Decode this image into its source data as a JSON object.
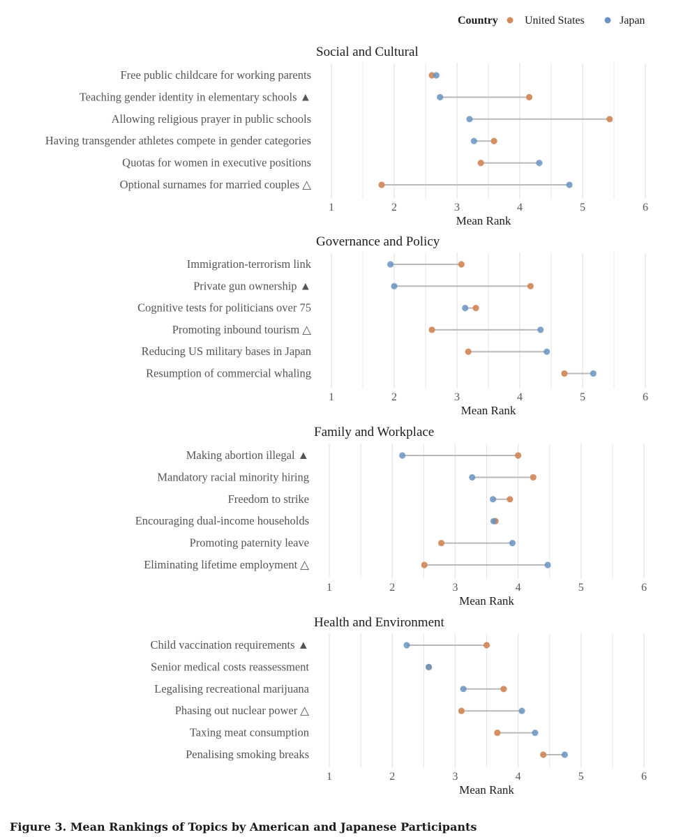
{
  "legend": {
    "title": "Country",
    "items": [
      "United States",
      "Japan"
    ]
  },
  "colors": {
    "us": "#d08a5c",
    "japan": "#6a94c0",
    "connector": "#b9b9b9",
    "grid": "#e6e6e6",
    "text": "#555555",
    "title_text": "#1c1c1c"
  },
  "caption": "Figure 3.  Mean Rankings of Topics by American and Japanese Participants",
  "chart_data": [
    {
      "type": "scatter",
      "title": "Social and Cultural",
      "xlabel": "Mean Rank",
      "xlim": [
        1,
        6
      ],
      "xticks": [
        "1",
        "2",
        "3",
        "4",
        "5",
        "6"
      ],
      "categories": [
        "Free public childcare for working parents",
        "Teaching gender identity in elementary schools ▲",
        "Allowing religious prayer in public schools",
        "Having transgender athletes compete in gender categories",
        "Quotas for women in executive positions",
        "Optional surnames for married couples △"
      ],
      "series": [
        {
          "name": "United States",
          "values": [
            2.6,
            4.15,
            5.43,
            3.59,
            3.38,
            1.8
          ]
        },
        {
          "name": "Japan",
          "values": [
            2.67,
            2.73,
            3.2,
            3.27,
            4.31,
            4.79
          ]
        }
      ]
    },
    {
      "type": "scatter",
      "title": "Governance and Policy",
      "xlabel": "Mean Rank",
      "xlim": [
        1,
        6
      ],
      "xticks": [
        "1",
        "2",
        "3",
        "4",
        "5",
        "6"
      ],
      "categories": [
        "Immigration-terrorism link",
        "Private gun ownership ▲",
        "Cognitive tests for politicians over 75",
        "Promoting inbound tourism △",
        "Reducing US military bases in Japan",
        "Resumption of commercial whaling"
      ],
      "series": [
        {
          "name": "United States",
          "values": [
            3.07,
            4.17,
            3.3,
            2.6,
            3.18,
            4.71
          ]
        },
        {
          "name": "Japan",
          "values": [
            1.94,
            2.0,
            3.13,
            4.33,
            4.43,
            5.17
          ]
        }
      ]
    },
    {
      "type": "scatter",
      "title": "Family and Workplace",
      "xlabel": "Mean Rank",
      "xlim": [
        1,
        6
      ],
      "xticks": [
        "1",
        "2",
        "3",
        "4",
        "5",
        "6"
      ],
      "categories": [
        "Making abortion illegal ▲",
        "Mandatory racial minority hiring",
        "Freedom to strike",
        "Encouraging dual-income households",
        "Promoting paternity leave",
        "Eliminating lifetime employment △"
      ],
      "series": [
        {
          "name": "United States",
          "values": [
            4.0,
            4.24,
            3.87,
            3.64,
            2.78,
            2.51
          ]
        },
        {
          "name": "Japan",
          "values": [
            2.16,
            3.27,
            3.6,
            3.61,
            3.91,
            4.47
          ]
        }
      ]
    },
    {
      "type": "scatter",
      "title": "Health and Environment",
      "xlabel": "Mean Rank",
      "xlim": [
        1,
        6
      ],
      "xticks": [
        "1",
        "2",
        "3",
        "4",
        "5",
        "6"
      ],
      "categories": [
        "Child vaccination requirements ▲",
        "Senior medical costs reassessment",
        "Legalising recreational marijuana",
        "Phasing out nuclear power △",
        "Taxing meat consumption",
        "Penalising smoking breaks"
      ],
      "series": [
        {
          "name": "United States",
          "values": [
            3.5,
            2.58,
            3.77,
            3.1,
            3.67,
            4.4
          ]
        },
        {
          "name": "Japan",
          "values": [
            2.23,
            2.58,
            3.13,
            4.06,
            4.27,
            4.74
          ]
        }
      ]
    }
  ]
}
